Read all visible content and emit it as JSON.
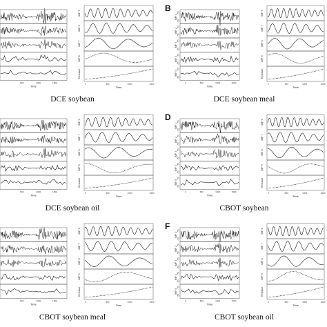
{
  "figure": {
    "panels": [
      {
        "letter": "",
        "caption": "DCE soybean",
        "left_imfs": [
          "",
          "",
          "",
          "",
          ""
        ],
        "right_imfs": [
          "IMF 5",
          "IMF 6",
          "IMF 7",
          "IMF 8",
          "Residual"
        ],
        "left_xticks": [
          "500",
          "1000",
          "1500"
        ],
        "right_xticks": [
          "0",
          "500",
          "1000",
          "1500"
        ],
        "xlabel": "Time"
      },
      {
        "letter": "B",
        "caption": "DCE soybean meal",
        "left_imfs": [
          "IMF 1",
          "IMF 2",
          "IMF 3",
          "IMF 4",
          "IMF 5"
        ],
        "right_imfs": [
          "IMF 6",
          "IMF 7",
          "IMF 8",
          "IMF 9",
          "Residual"
        ],
        "left_xticks": [
          "0",
          "500",
          "1000",
          "1500"
        ],
        "right_xticks": [
          "0",
          "500",
          "1000",
          "1500"
        ],
        "xlabel": "Time"
      },
      {
        "letter": "",
        "caption": "DCE soybean oil",
        "left_imfs": [
          "",
          "",
          "",
          "",
          ""
        ],
        "right_imfs": [
          "IMF 6",
          "IMF 7",
          "IMF 8",
          "IMF 9",
          "Residual"
        ],
        "left_xticks": [
          "500",
          "1000",
          "1500"
        ],
        "right_xticks": [
          "0",
          "500",
          "1000",
          "1500"
        ],
        "xlabel": "Time"
      },
      {
        "letter": "D",
        "caption": "CBOT soybean",
        "left_imfs": [
          "IMF 1",
          "IMF 2",
          "IMF 3",
          "IMF 4",
          "IMF 5"
        ],
        "right_imfs": [
          "IMF 6",
          "IMF 7",
          "IMF 8",
          "IMF 9",
          "Residual"
        ],
        "left_xticks": [
          "0",
          "500",
          "1000",
          "1500"
        ],
        "right_xticks": [
          "0",
          "500",
          "1000",
          "1500"
        ],
        "xlabel": "Time"
      },
      {
        "letter": "",
        "caption": "CBOT soybean meal",
        "left_imfs": [
          "",
          "",
          "",
          "",
          ""
        ],
        "right_imfs": [
          "IMF 6",
          "IMF 7",
          "IMF 8",
          "IMF 9",
          "Residual"
        ],
        "left_xticks": [
          "500",
          "1000",
          "1500"
        ],
        "right_xticks": [
          "0",
          "500",
          "1000",
          "1500"
        ],
        "xlabel": "Time"
      },
      {
        "letter": "F",
        "caption": "CBOT soybean oil",
        "left_imfs": [
          "IMF 1",
          "IMF 2",
          "IMF 3",
          "IMF 4",
          "IMF 5"
        ],
        "right_imfs": [
          "IMF 6",
          "IMF 7",
          "IMF 8",
          "IMF 9",
          "Residual"
        ],
        "left_xticks": [
          "0",
          "500",
          "1000",
          "1500"
        ],
        "right_xticks": [
          "0",
          "500",
          "1000",
          "1500"
        ],
        "xlabel": "Time"
      }
    ]
  },
  "colors": {
    "line": "#1a1a1a",
    "axis": "#555555",
    "background": "#ffffff"
  }
}
